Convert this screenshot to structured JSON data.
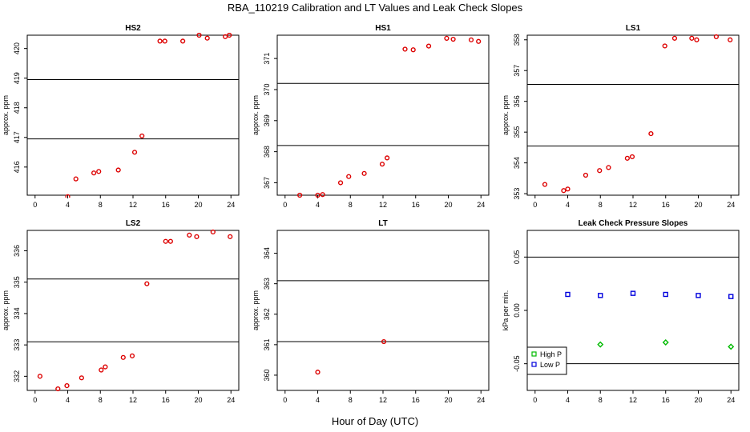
{
  "title": "RBA_110219  Calibration and LT Values and Leak Check Slopes",
  "xlabel": "Hour of Day (UTC)",
  "colors": {
    "red": "#dd0000",
    "green": "#00bb00",
    "blue": "#0000dd"
  },
  "chart_data": [
    {
      "type": "scatter",
      "title": "HS2",
      "ylabel": "approx. ppm",
      "xlim": [
        0,
        24
      ],
      "ylim": [
        415.05,
        420.45
      ],
      "xticks": [
        "0",
        "4",
        "8",
        "12",
        "16",
        "20",
        "24"
      ],
      "yticks": [
        "416",
        "417",
        "418",
        "419",
        "420"
      ],
      "ref_lines": [
        416.95,
        418.95
      ],
      "series": [
        {
          "color": "red",
          "marker": "circle",
          "x": [
            4.0,
            5.0,
            7.2,
            7.8,
            10.2,
            12.2,
            13.1,
            15.3,
            15.9,
            18.1,
            20.1,
            21.1,
            23.3,
            23.8
          ],
          "y": [
            415.0,
            415.6,
            415.8,
            415.85,
            415.9,
            416.5,
            417.05,
            420.25,
            420.25,
            420.25,
            420.45,
            420.35,
            420.4,
            420.45
          ]
        }
      ]
    },
    {
      "type": "scatter",
      "title": "HS1",
      "ylabel": "approx. ppm",
      "xlim": [
        0,
        24
      ],
      "ylim": [
        366.6,
        371.75
      ],
      "xticks": [
        "0",
        "4",
        "8",
        "12",
        "16",
        "20",
        "24"
      ],
      "yticks": [
        "367",
        "368",
        "369",
        "370",
        "371"
      ],
      "ref_lines": [
        368.2,
        370.2
      ],
      "series": [
        {
          "color": "red",
          "marker": "circle",
          "x": [
            1.8,
            4.0,
            4.6,
            6.8,
            7.8,
            9.7,
            11.9,
            12.5,
            14.7,
            15.7,
            17.6,
            19.8,
            20.6,
            22.8,
            23.7
          ],
          "y": [
            366.6,
            366.6,
            366.62,
            367.0,
            367.2,
            367.3,
            367.6,
            367.8,
            371.3,
            371.28,
            371.4,
            371.65,
            371.62,
            371.6,
            371.55
          ]
        }
      ]
    },
    {
      "type": "scatter",
      "title": "LS1",
      "ylabel": "approx. ppm",
      "xlim": [
        0,
        24
      ],
      "ylim": [
        352.95,
        358.15
      ],
      "xticks": [
        "0",
        "4",
        "8",
        "12",
        "16",
        "20",
        "24"
      ],
      "yticks": [
        "353",
        "354",
        "355",
        "356",
        "357",
        "358"
      ],
      "ref_lines": [
        354.55,
        356.55
      ],
      "series": [
        {
          "color": "red",
          "marker": "circle",
          "x": [
            1.2,
            3.5,
            4.0,
            6.2,
            7.9,
            9.0,
            11.3,
            11.9,
            14.2,
            15.9,
            17.1,
            19.2,
            19.8,
            22.2,
            23.9
          ],
          "y": [
            353.3,
            353.1,
            353.15,
            353.6,
            353.75,
            353.85,
            354.15,
            354.2,
            354.95,
            357.8,
            358.05,
            358.05,
            358.0,
            358.1,
            358.0
          ]
        }
      ]
    },
    {
      "type": "scatter",
      "title": "LS2",
      "ylabel": "approx. ppm",
      "xlim": [
        0,
        24
      ],
      "ylim": [
        331.55,
        336.65
      ],
      "xticks": [
        "0",
        "4",
        "8",
        "12",
        "16",
        "20",
        "24"
      ],
      "yticks": [
        "332",
        "333",
        "334",
        "335",
        "336"
      ],
      "ref_lines": [
        333.1,
        335.1
      ],
      "series": [
        {
          "color": "red",
          "marker": "circle",
          "x": [
            0.6,
            2.8,
            3.9,
            5.7,
            8.1,
            8.6,
            10.8,
            11.9,
            13.7,
            16.0,
            16.6,
            18.9,
            19.8,
            21.8,
            23.9
          ],
          "y": [
            332.0,
            331.6,
            331.7,
            331.95,
            332.2,
            332.3,
            332.6,
            332.65,
            334.95,
            336.3,
            336.3,
            336.5,
            336.45,
            336.6,
            336.45
          ]
        }
      ]
    },
    {
      "type": "scatter",
      "title": "LT",
      "ylabel": "approx. ppm",
      "xlim": [
        0,
        24
      ],
      "ylim": [
        359.5,
        364.75
      ],
      "xticks": [
        "0",
        "4",
        "8",
        "12",
        "16",
        "20",
        "24"
      ],
      "yticks": [
        "360",
        "361",
        "362",
        "363",
        "364"
      ],
      "ref_lines": [
        361.1,
        363.1
      ],
      "series": [
        {
          "color": "red",
          "marker": "circle",
          "x": [
            4.0,
            12.1
          ],
          "y": [
            360.1,
            361.1
          ]
        }
      ]
    },
    {
      "type": "scatter",
      "title": "Leak Check Pressure Slopes",
      "ylabel": "kPa per min.",
      "xlim": [
        0,
        24
      ],
      "ylim": [
        -0.075,
        0.075
      ],
      "xticks": [
        "0",
        "4",
        "8",
        "12",
        "16",
        "20",
        "24"
      ],
      "yticks": [
        "-0.05",
        "0.00",
        "0.05"
      ],
      "yvals": [
        -0.05,
        0.0,
        0.05
      ],
      "ref_lines": [
        0.05,
        -0.05
      ],
      "legend": {
        "position": "bottom-left",
        "entries": [
          {
            "label": "High P",
            "color": "green"
          },
          {
            "label": "Low P",
            "color": "blue"
          }
        ]
      },
      "series": [
        {
          "name": "High P",
          "color": "green",
          "marker": "diamond",
          "x": [
            8,
            16,
            24
          ],
          "y": [
            -0.032,
            -0.03,
            -0.034
          ]
        },
        {
          "name": "Low P",
          "color": "blue",
          "marker": "square",
          "x": [
            4,
            8,
            12,
            16,
            20,
            24
          ],
          "y": [
            0.015,
            0.014,
            0.016,
            0.015,
            0.014,
            0.013
          ]
        }
      ]
    }
  ]
}
